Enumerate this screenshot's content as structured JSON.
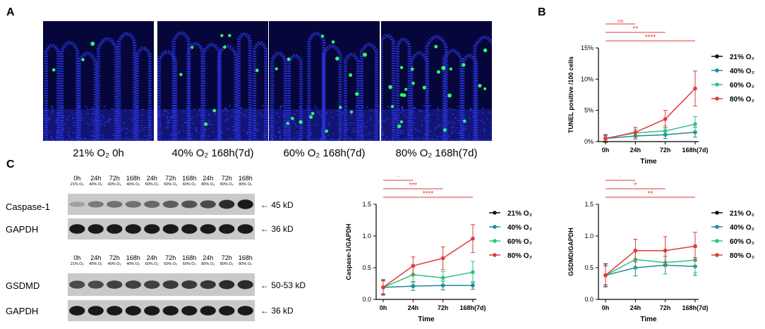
{
  "panels": {
    "a": "A",
    "b": "B",
    "c": "C"
  },
  "panel_a": {
    "images": [
      {
        "caption": "21% O₂ 0h",
        "dots": 3
      },
      {
        "caption": "40% O₂ 168h(7d)",
        "dots": 8
      },
      {
        "caption": "60% O₂ 168h(7d)",
        "dots": 16
      },
      {
        "caption": "80% O₂ 168h(7d)",
        "dots": 22
      }
    ],
    "colors": {
      "nuclei": "#2a35e0",
      "tunel": "#2dff6a",
      "background": "#06063a"
    }
  },
  "blots": {
    "lane_times": [
      "0h",
      "24h",
      "72h",
      "168h",
      "24h",
      "72h",
      "168h",
      "24h",
      "72h",
      "168h"
    ],
    "lane_conditions": [
      "21% O₂",
      "40% O₂",
      "40% O₂",
      "40% O₂",
      "60% O₂",
      "60% O₂",
      "60% O₂",
      "80% O₂",
      "80% O₂",
      "80% O₂"
    ],
    "rows": [
      {
        "name": "Caspase-1",
        "kd": "← 45 kD",
        "intensity": [
          0.25,
          0.45,
          0.5,
          0.5,
          0.55,
          0.6,
          0.65,
          0.7,
          0.85,
          0.95
        ]
      },
      {
        "name": "GAPDH",
        "kd": "← 36 kD",
        "intensity": [
          0.95,
          0.95,
          0.95,
          0.95,
          0.95,
          0.95,
          0.95,
          0.95,
          0.95,
          0.95
        ]
      },
      {
        "name": "GSDMD",
        "kd": "← 50-53 kD",
        "intensity": [
          0.7,
          0.7,
          0.75,
          0.75,
          0.75,
          0.78,
          0.78,
          0.8,
          0.85,
          0.85
        ]
      },
      {
        "name": "GAPDH",
        "kd": "← 36 kD",
        "intensity": [
          0.95,
          0.95,
          0.95,
          0.95,
          0.95,
          0.95,
          0.95,
          0.95,
          0.95,
          0.95
        ]
      }
    ]
  },
  "series_style": [
    {
      "name": "21% O₂",
      "color": "#111111"
    },
    {
      "name": "40% O₂",
      "color": "#1f8a9a"
    },
    {
      "name": "60% O₂",
      "color": "#2ec27e"
    },
    {
      "name": "80% O₂",
      "color": "#e23a3a"
    }
  ],
  "chart_data": [
    {
      "type": "line",
      "id": "tunel",
      "xlabel": "Time",
      "ylabel": "TUNEL positive /100 cells",
      "categories": [
        "0h",
        "24h",
        "72h",
        "168h(7d)"
      ],
      "ylim": [
        0,
        15
      ],
      "yticks": [
        0,
        5,
        10,
        15
      ],
      "ytick_labels": [
        "0%",
        "5%",
        "10%",
        "15%"
      ],
      "series": [
        {
          "name": "21% O₂",
          "x": [
            0
          ],
          "values": [
            0.5
          ],
          "err": [
            0.6
          ]
        },
        {
          "name": "40% O₂",
          "x": [
            0,
            1,
            2,
            3
          ],
          "values": [
            0.5,
            0.9,
            1.1,
            1.5
          ],
          "err": [
            0.4,
            0.5,
            0.6,
            0.8
          ]
        },
        {
          "name": "60% O₂",
          "x": [
            0,
            1,
            2,
            3
          ],
          "values": [
            0.5,
            1.4,
            1.7,
            2.8
          ],
          "err": [
            0.4,
            0.6,
            0.8,
            1.2
          ]
        },
        {
          "name": "80% O₂",
          "x": [
            0,
            1,
            2,
            3
          ],
          "values": [
            0.5,
            1.5,
            3.6,
            8.5
          ],
          "err": [
            0.4,
            0.8,
            1.4,
            2.8
          ]
        }
      ],
      "significance": [
        {
          "from": 0,
          "to": 1,
          "label": "ns"
        },
        {
          "from": 0,
          "to": 2,
          "label": "**"
        },
        {
          "from": 0,
          "to": 3,
          "label": "****"
        }
      ]
    },
    {
      "type": "line",
      "id": "caspase",
      "xlabel": "Time",
      "ylabel": "Caspase-1/GAPDH",
      "categories": [
        "0h",
        "24h",
        "72h",
        "168h(7d)"
      ],
      "ylim": [
        0,
        1.5
      ],
      "yticks": [
        0,
        0.5,
        1.0,
        1.5
      ],
      "ytick_labels": [
        "0.0",
        "0.5",
        "1.0",
        "1.5"
      ],
      "series": [
        {
          "name": "21% O₂",
          "x": [
            0
          ],
          "values": [
            0.19
          ],
          "err": [
            0.12
          ]
        },
        {
          "name": "40% O₂",
          "x": [
            0,
            1,
            2,
            3
          ],
          "values": [
            0.19,
            0.21,
            0.22,
            0.22
          ],
          "err": [
            0.1,
            0.07,
            0.07,
            0.06
          ]
        },
        {
          "name": "60% O₂",
          "x": [
            0,
            1,
            2,
            3
          ],
          "values": [
            0.19,
            0.39,
            0.34,
            0.43
          ],
          "err": [
            0.1,
            0.12,
            0.1,
            0.17
          ]
        },
        {
          "name": "80% O₂",
          "x": [
            0,
            1,
            2,
            3
          ],
          "values": [
            0.19,
            0.53,
            0.65,
            0.96
          ],
          "err": [
            0.1,
            0.14,
            0.18,
            0.22
          ]
        }
      ],
      "significance": [
        {
          "from": 0,
          "to": 1,
          "label": "**"
        },
        {
          "from": 0,
          "to": 2,
          "label": "***"
        },
        {
          "from": 0,
          "to": 3,
          "label": "****"
        }
      ]
    },
    {
      "type": "line",
      "id": "gsdmd",
      "xlabel": "Time",
      "ylabel": "GSDMD/GAPDH",
      "categories": [
        "0h",
        "24h",
        "72h",
        "168h(7d)"
      ],
      "ylim": [
        0,
        1.5
      ],
      "yticks": [
        0,
        0.5,
        1.0,
        1.5
      ],
      "ytick_labels": [
        "0.0",
        "0.5",
        "1.0",
        "1.5"
      ],
      "series": [
        {
          "name": "21% O₂",
          "x": [
            0
          ],
          "values": [
            0.38
          ],
          "err": [
            0.18
          ]
        },
        {
          "name": "40% O₂",
          "x": [
            0,
            1,
            2,
            3
          ],
          "values": [
            0.38,
            0.5,
            0.54,
            0.52
          ],
          "err": [
            0.15,
            0.13,
            0.14,
            0.14
          ]
        },
        {
          "name": "60% O₂",
          "x": [
            0,
            1,
            2,
            3
          ],
          "values": [
            0.38,
            0.63,
            0.58,
            0.62
          ],
          "err": [
            0.15,
            0.14,
            0.18,
            0.2
          ]
        },
        {
          "name": "80% O₂",
          "x": [
            0,
            1,
            2,
            3
          ],
          "values": [
            0.38,
            0.77,
            0.77,
            0.84
          ],
          "err": [
            0.15,
            0.18,
            0.22,
            0.22
          ]
        }
      ],
      "significance": [
        {
          "from": 0,
          "to": 1,
          "label": "*"
        },
        {
          "from": 0,
          "to": 2,
          "label": "*"
        },
        {
          "from": 0,
          "to": 3,
          "label": "**"
        }
      ]
    }
  ]
}
